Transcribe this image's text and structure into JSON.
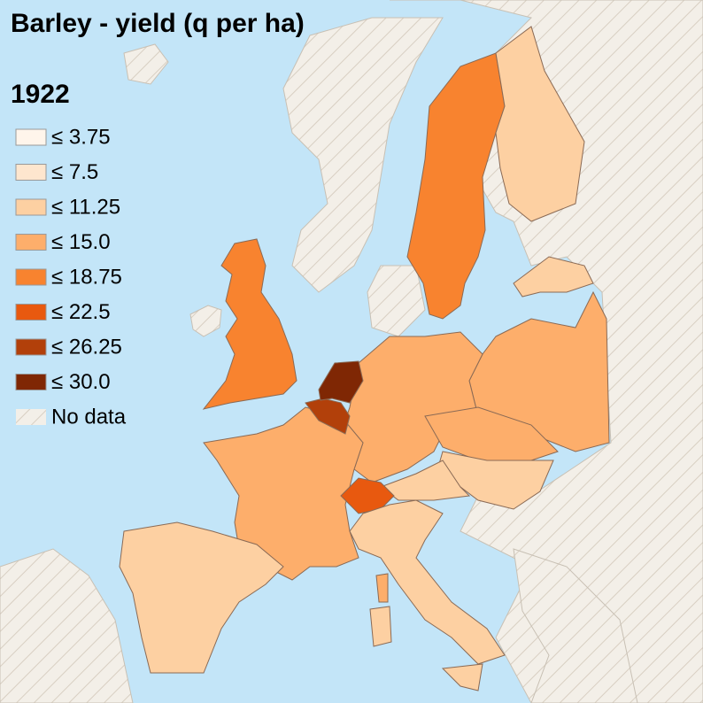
{
  "title": "Barley - yield (q per ha)",
  "year": "1922",
  "legend": {
    "items": [
      {
        "label": "≤ 3.75",
        "color": "#fff5eb"
      },
      {
        "label": "≤ 7.5",
        "color": "#fee6ce"
      },
      {
        "label": "≤ 11.25",
        "color": "#fdd0a2"
      },
      {
        "label": "≤ 15.0",
        "color": "#fdae6b"
      },
      {
        "label": "≤ 18.75",
        "color": "#f8832f"
      },
      {
        "label": "≤ 22.5",
        "color": "#e8590f"
      },
      {
        "label": "≤ 26.25",
        "color": "#b2400a"
      },
      {
        "label": "≤ 30.0",
        "color": "#7f2704"
      },
      {
        "label": "No data"
      }
    ]
  }
}
